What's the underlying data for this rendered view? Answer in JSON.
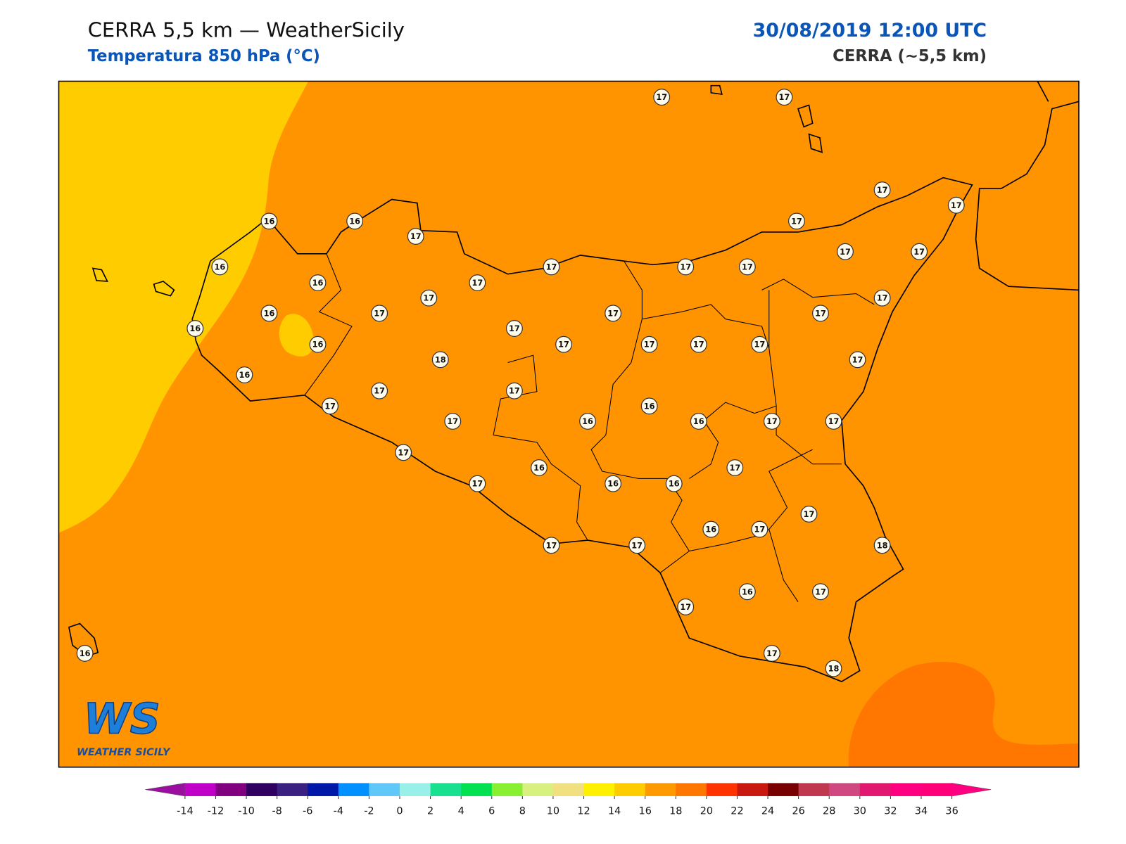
{
  "header": {
    "title": "CERRA 5,5 km — WeatherSicily",
    "subtitle": "Temperatura 850 hPa (°C)",
    "datetime": "30/08/2019 12:00 UTC",
    "model": "CERRA (~5,5 km)"
  },
  "map": {
    "background": "#ff9400",
    "stations": [
      17,
      17,
      17,
      17,
      16,
      16,
      17,
      17,
      16,
      17,
      17,
      17,
      17,
      17,
      16,
      17,
      17,
      17,
      16,
      17,
      17,
      17,
      16,
      17,
      16,
      17,
      17,
      17,
      17,
      18,
      17,
      16,
      17,
      17,
      16,
      17,
      17,
      16,
      16,
      17,
      17,
      17,
      17,
      16,
      17,
      16,
      16,
      17,
      16,
      17,
      17,
      17,
      18,
      17,
      16,
      17,
      17,
      18,
      16
    ]
  },
  "logo": {
    "mark": "WS",
    "text": "WEATHER SICILY"
  },
  "colorbar": {
    "ticks": [
      -14,
      -12,
      -10,
      -8,
      -6,
      -4,
      -2,
      0,
      2,
      4,
      6,
      8,
      10,
      12,
      14,
      16,
      18,
      20,
      22,
      24,
      26,
      28,
      30,
      32,
      34,
      36
    ],
    "colors": [
      "#c000c8",
      "#800080",
      "#300060",
      "#3a2080",
      "#0018a8",
      "#0090ff",
      "#60c8f8",
      "#98f0e8",
      "#18e090",
      "#00e050",
      "#88f030",
      "#d8f080",
      "#f0e080",
      "#fff000",
      "#ffcc00",
      "#ff9900",
      "#ff7700",
      "#ff3300",
      "#c81810",
      "#780000",
      "#c03850",
      "#d04880",
      "#e01870",
      "#ff0080",
      "#ff0078"
    ],
    "under": "#9a0fa0",
    "over": "#ff0080"
  }
}
